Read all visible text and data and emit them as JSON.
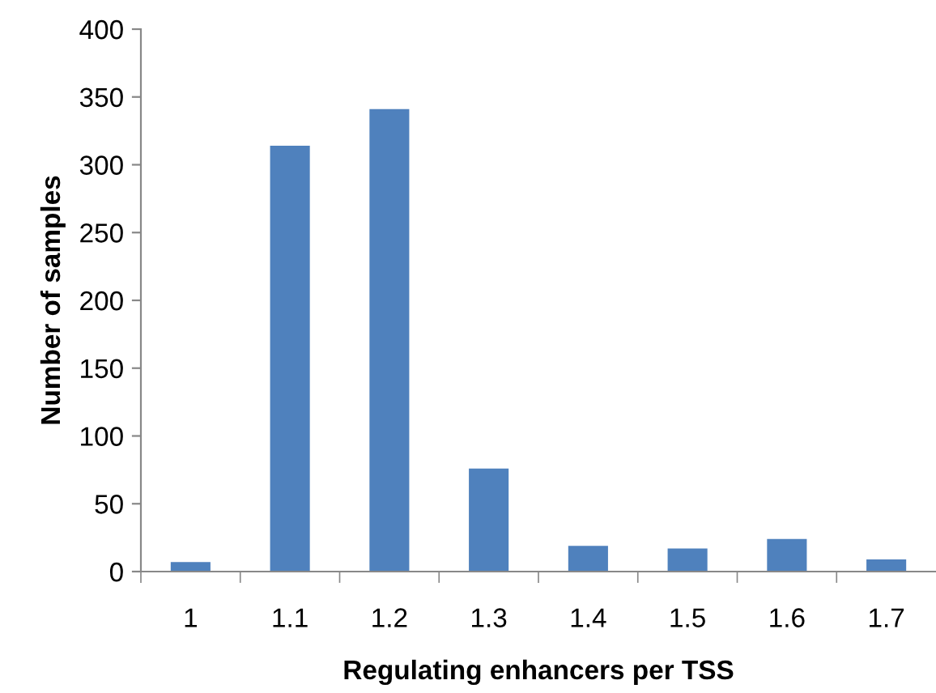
{
  "chart_data": {
    "type": "bar",
    "xlabel": "Regulating enhancers per TSS",
    "ylabel": "Number of samples",
    "categories": [
      "1",
      "1.1",
      "1.2",
      "1.3",
      "1.4",
      "1.5",
      "1.6",
      "1.7"
    ],
    "values": [
      7,
      314,
      341,
      76,
      19,
      17,
      24,
      9
    ],
    "color": "#4f81bd",
    "ylim": [
      0,
      400
    ],
    "yticks": [
      0,
      50,
      100,
      150,
      200,
      250,
      300,
      350,
      400
    ],
    "grid": false
  }
}
